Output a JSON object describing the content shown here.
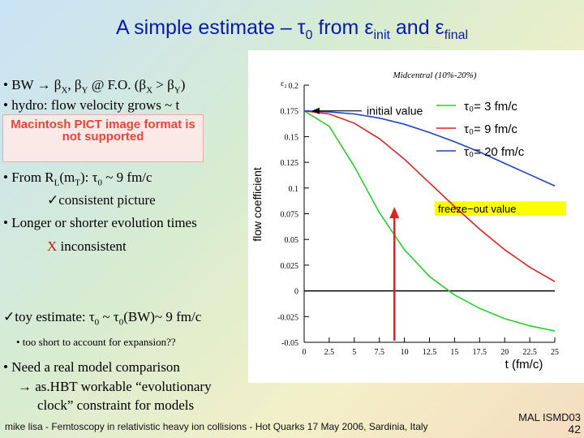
{
  "slide": {
    "title_prefix": "A simple estimate – τ",
    "title_sub0": "0",
    "title_mid": " from ε",
    "title_sub_init": "init",
    "title_and": " and ε",
    "title_sub_final": "final",
    "b1_text": "• BW → β",
    "b1_sub_x": "X",
    "b1_mid": ", β",
    "b1_sub_y": "Y",
    "b1_after": " @ F.O.  (β",
    "b1_sub_x2": "X",
    "b1_gt": " > β",
    "b1_sub_y2": "Y",
    "b1_end": ")",
    "b2": "• hydro: flow velocity grows ~ t",
    "pict_text": "Macintosh PICT image format is not supported",
    "b3_pre": "• From R",
    "b3_sub_l": "L",
    "b3_mid": "(m",
    "b3_sub_t": "T",
    "b3_post": "): τ",
    "b3_sub0": "0",
    "b3_end": " ~ 9 fm/c",
    "b3_check": "✓consistent picture",
    "b4": "• Longer or shorter evolution times",
    "b4_x": "X",
    "b4_x_text": " inconsistent",
    "b5_pre": "✓toy estimate: τ",
    "b5_sub0": "0",
    "b5_mid": " ~ τ",
    "b5_sub0b": "0",
    "b5_end": "(BW)~ 9 fm/c",
    "b5_sub": "• too short to account for expansion??",
    "b6": "• Need a real model comparison",
    "b6_line2": "→ as.HBT workable “evolutionary",
    "b6_line3": "clock” constraint for models",
    "footer": "mike lisa - Femtoscopy in relativistic heavy ion collisions - Hot Quarks 17 May 2006, Sardinia, Italy",
    "mal": "MAL ISMD03",
    "page_num": "42"
  },
  "chart_data": {
    "type": "line",
    "title": "Midcentral (10%-20%)",
    "xlabel": "t (fm/c)",
    "ylabel": "flow coefficient",
    "ylabel_short": "ε₂",
    "xlim": [
      0,
      25
    ],
    "ylim": [
      -0.05,
      0.2
    ],
    "x_ticks": [
      "0",
      "2.5",
      "5",
      "7.5",
      "10",
      "12.5",
      "15",
      "17.5",
      "20",
      "22.5",
      "25"
    ],
    "y_ticks": [
      "-0.05",
      "-0.025",
      "0",
      "0.025",
      "0.05",
      "0.075",
      "0.1",
      "0.125",
      "0.15",
      "0.175",
      "0.2"
    ],
    "series": [
      {
        "name": "τ₀= 3 fm/c",
        "color": "#2ecc2e",
        "x": [
          0,
          2.5,
          5,
          7.5,
          10,
          12.5,
          15,
          17.5,
          20,
          22.5,
          25
        ],
        "y": [
          0.175,
          0.16,
          0.121,
          0.076,
          0.04,
          0.014,
          -0.004,
          -0.017,
          -0.027,
          -0.034,
          -0.039
        ]
      },
      {
        "name": "τ₀= 9 fm/c",
        "color": "#dd2222",
        "x": [
          0,
          2.5,
          5,
          7.5,
          10,
          12.5,
          15,
          17.5,
          20,
          22.5,
          25
        ],
        "y": [
          0.175,
          0.172,
          0.163,
          0.148,
          0.128,
          0.105,
          0.082,
          0.06,
          0.04,
          0.023,
          0.009
        ]
      },
      {
        "name": "τ₀= 20 fm/c",
        "color": "#2244bb",
        "x": [
          0,
          2.5,
          5,
          7.5,
          10,
          12.5,
          15,
          17.5,
          20,
          22.5,
          25
        ],
        "y": [
          0.175,
          0.174,
          0.172,
          0.168,
          0.162,
          0.154,
          0.145,
          0.135,
          0.124,
          0.113,
          0.102
        ]
      }
    ],
    "annotations": {
      "initial_value": "initial value",
      "freeze_out": "freeze−out value",
      "initial_y": 0.175,
      "freeze_band": [
        0.073,
        0.087
      ],
      "marker_x": 9
    }
  }
}
